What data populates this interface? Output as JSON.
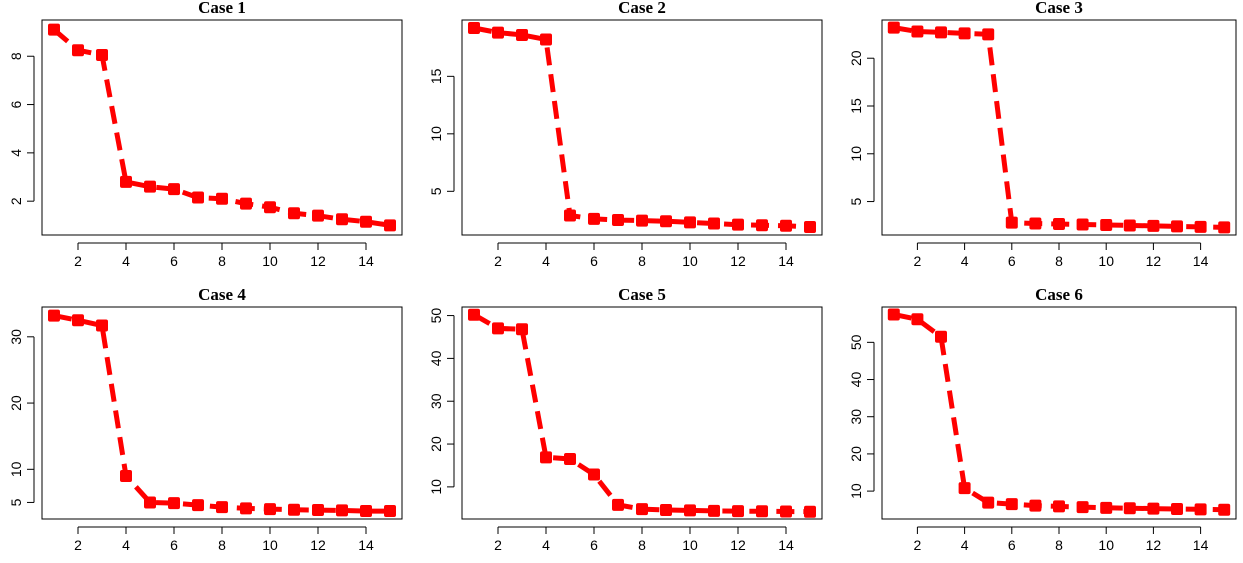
{
  "colors": {
    "series": "#ff0000",
    "axis": "#000000",
    "background": "#ffffff"
  },
  "chart_data": [
    {
      "type": "line",
      "title": "Case 1",
      "x": [
        1,
        2,
        3,
        4,
        5,
        6,
        7,
        8,
        9,
        10,
        11,
        12,
        13,
        14,
        15
      ],
      "series": [
        {
          "values": [
            9.1,
            8.25,
            8.05,
            2.8,
            2.6,
            2.5,
            2.15,
            2.1,
            1.9,
            1.75,
            1.5,
            1.4,
            1.25,
            1.15,
            1.0
          ]
        }
      ],
      "xlim": [
        0.5,
        15.5
      ],
      "ylim": [
        0.6,
        9.5
      ],
      "xticks": [
        2,
        4,
        6,
        8,
        10,
        12,
        14
      ],
      "yticks": [
        2,
        4,
        6,
        8
      ]
    },
    {
      "type": "line",
      "title": "Case 2",
      "x": [
        1,
        2,
        3,
        4,
        5,
        6,
        7,
        8,
        9,
        10,
        11,
        12,
        13,
        14,
        15
      ],
      "series": [
        {
          "values": [
            19.2,
            18.8,
            18.6,
            18.2,
            2.9,
            2.6,
            2.5,
            2.45,
            2.4,
            2.3,
            2.2,
            2.1,
            2.05,
            2.0,
            1.9
          ]
        }
      ],
      "xlim": [
        0.5,
        15.5
      ],
      "ylim": [
        1.2,
        19.9
      ],
      "xticks": [
        2,
        4,
        6,
        8,
        10,
        12,
        14
      ],
      "yticks": [
        5,
        10,
        15
      ]
    },
    {
      "type": "line",
      "title": "Case 3",
      "x": [
        1,
        2,
        3,
        4,
        5,
        6,
        7,
        8,
        9,
        10,
        11,
        12,
        13,
        14,
        15
      ],
      "series": [
        {
          "values": [
            23.2,
            22.8,
            22.7,
            22.6,
            22.5,
            2.8,
            2.7,
            2.65,
            2.6,
            2.55,
            2.5,
            2.45,
            2.4,
            2.35,
            2.3
          ]
        }
      ],
      "xlim": [
        0.5,
        15.5
      ],
      "ylim": [
        1.5,
        24.0
      ],
      "xticks": [
        2,
        4,
        6,
        8,
        10,
        12,
        14
      ],
      "yticks": [
        5,
        10,
        15,
        20
      ]
    },
    {
      "type": "line",
      "title": "Case 4",
      "x": [
        1,
        2,
        3,
        4,
        5,
        6,
        7,
        8,
        9,
        10,
        11,
        12,
        13,
        14,
        15
      ],
      "series": [
        {
          "values": [
            33.2,
            32.5,
            31.7,
            9.0,
            5.0,
            4.9,
            4.6,
            4.3,
            4.1,
            4.0,
            3.9,
            3.85,
            3.8,
            3.7,
            3.7
          ]
        }
      ],
      "xlim": [
        0.5,
        15.5
      ],
      "ylim": [
        2.5,
        34.5
      ],
      "xticks": [
        2,
        4,
        6,
        8,
        10,
        12,
        14
      ],
      "yticks": [
        5,
        10,
        20,
        30
      ]
    },
    {
      "type": "line",
      "title": "Case 5",
      "x": [
        1,
        2,
        3,
        4,
        5,
        6,
        7,
        8,
        9,
        10,
        11,
        12,
        13,
        14,
        15
      ],
      "series": [
        {
          "values": [
            50.2,
            47.0,
            46.8,
            16.9,
            16.5,
            12.9,
            5.8,
            4.8,
            4.6,
            4.5,
            4.4,
            4.35,
            4.3,
            4.25,
            4.2
          ]
        }
      ],
      "xlim": [
        0.5,
        15.5
      ],
      "ylim": [
        2.5,
        52.0
      ],
      "xticks": [
        2,
        4,
        6,
        8,
        10,
        12,
        14
      ],
      "yticks": [
        10,
        20,
        30,
        40,
        50
      ]
    },
    {
      "type": "line",
      "title": "Case 6",
      "x": [
        1,
        2,
        3,
        4,
        5,
        6,
        7,
        8,
        9,
        10,
        11,
        12,
        13,
        14,
        15
      ],
      "series": [
        {
          "values": [
            57.5,
            56.2,
            51.5,
            10.8,
            6.9,
            6.5,
            6.1,
            5.9,
            5.7,
            5.5,
            5.4,
            5.3,
            5.2,
            5.1,
            5.0
          ]
        }
      ],
      "xlim": [
        0.5,
        15.5
      ],
      "ylim": [
        2.5,
        59.5
      ],
      "xticks": [
        2,
        4,
        6,
        8,
        10,
        12,
        14
      ],
      "yticks": [
        10,
        20,
        30,
        40,
        50
      ]
    }
  ]
}
